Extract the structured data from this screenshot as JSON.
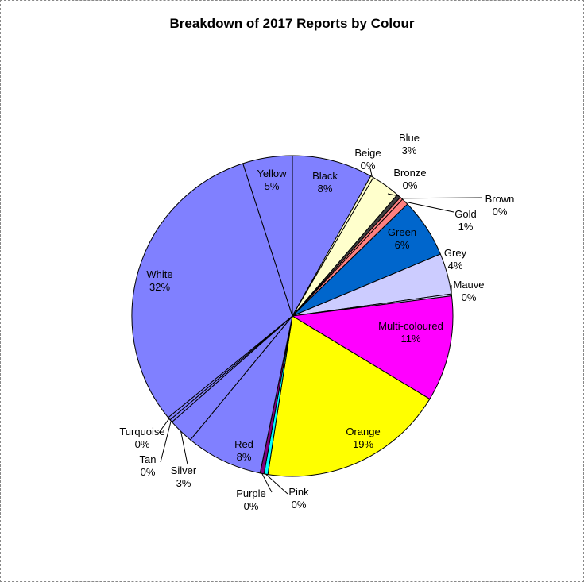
{
  "chart_data": {
    "type": "pie",
    "title": "Breakdown of 2017 Reports by Colour",
    "start_angle_deg": 0,
    "direction": "clockwise",
    "slices": [
      {
        "name": "Black",
        "value": 8.3,
        "pct_label": "8%",
        "color": "#8080ff"
      },
      {
        "name": "Beige",
        "value": 0.3,
        "pct_label": "0%",
        "color": "#ffffcc"
      },
      {
        "name": "Blue",
        "value": 3.0,
        "pct_label": "3%",
        "color": "#ffffcc"
      },
      {
        "name": "Bronze",
        "value": 0.4,
        "pct_label": "0%",
        "color": "#404040"
      },
      {
        "name": "Brown",
        "value": 0.3,
        "pct_label": "0%",
        "color": "#ff8080"
      },
      {
        "name": "Gold",
        "value": 0.7,
        "pct_label": "1%",
        "color": "#ff8080"
      },
      {
        "name": "Green",
        "value": 6.1,
        "pct_label": "6%",
        "color": "#0066cc"
      },
      {
        "name": "Grey",
        "value": 4.2,
        "pct_label": "4%",
        "color": "#ccccff"
      },
      {
        "name": "Mauve",
        "value": 0.2,
        "pct_label": "0%",
        "color": "#ccccff"
      },
      {
        "name": "Multi-coloured",
        "value": 10.9,
        "pct_label": "11%",
        "color": "#ff00ff"
      },
      {
        "name": "Orange",
        "value": 19.2,
        "pct_label": "19%",
        "color": "#ffff00"
      },
      {
        "name": "Pink",
        "value": 0.4,
        "pct_label": "0%",
        "color": "#00ffff"
      },
      {
        "name": "Purple",
        "value": 0.4,
        "pct_label": "0%",
        "color": "#800080"
      },
      {
        "name": "Red",
        "value": 7.9,
        "pct_label": "8%",
        "color": "#8080ff"
      },
      {
        "name": "Silver",
        "value": 2.6,
        "pct_label": "3%",
        "color": "#8080ff"
      },
      {
        "name": "Tan",
        "value": 0.3,
        "pct_label": "0%",
        "color": "#8080ff"
      },
      {
        "name": "Turquoise",
        "value": 0.3,
        "pct_label": "0%",
        "color": "#8080ff"
      },
      {
        "name": "White",
        "value": 31.6,
        "pct_label": "32%",
        "color": "#8080ff"
      },
      {
        "name": "Yellow",
        "value": 5.1,
        "pct_label": "5%",
        "color": "#8080ff"
      }
    ]
  }
}
